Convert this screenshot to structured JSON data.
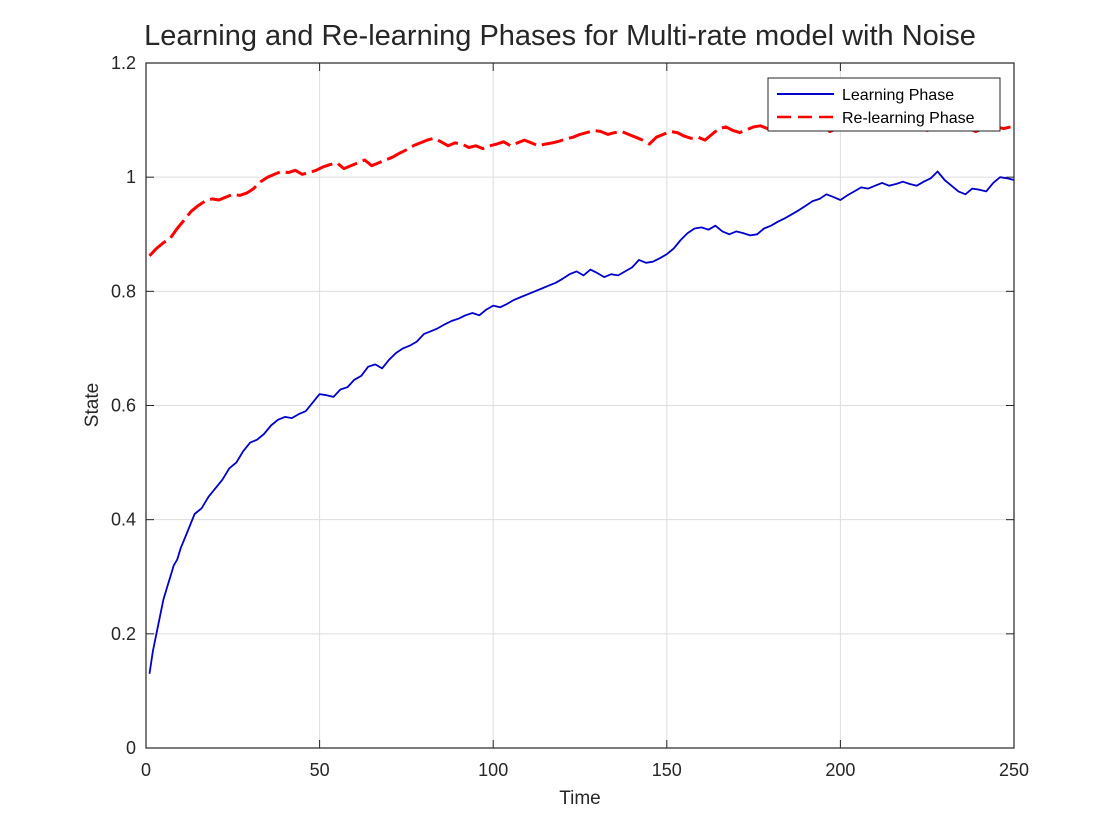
{
  "chart_data": {
    "type": "line",
    "title": "Learning and Re-learning Phases for Multi-rate model with Noise",
    "xlabel": "Time",
    "ylabel": "State",
    "xlim": [
      0,
      250
    ],
    "ylim": [
      0,
      1.2
    ],
    "xticks": [
      0,
      50,
      100,
      150,
      200,
      250
    ],
    "yticks": [
      0,
      0.2,
      0.4,
      0.6,
      0.8,
      1,
      1.2
    ],
    "xtick_labels": [
      "0",
      "50",
      "100",
      "150",
      "200",
      "250"
    ],
    "ytick_labels": [
      "0",
      "0.2",
      "0.4",
      "0.6",
      "0.8",
      "1",
      "1.2"
    ],
    "grid": true,
    "legend_position": "top-right",
    "series": [
      {
        "name": "Learning Phase",
        "color": "#0000cc",
        "style": "solid",
        "x": [
          1,
          2,
          3,
          4,
          5,
          6,
          7,
          8,
          9,
          10,
          12,
          14,
          16,
          18,
          20,
          22,
          24,
          26,
          28,
          30,
          32,
          34,
          36,
          38,
          40,
          42,
          44,
          46,
          48,
          50,
          52,
          54,
          56,
          58,
          60,
          62,
          64,
          66,
          68,
          70,
          72,
          74,
          76,
          78,
          80,
          82,
          84,
          86,
          88,
          90,
          92,
          94,
          96,
          98,
          100,
          102,
          104,
          106,
          108,
          110,
          112,
          114,
          116,
          118,
          120,
          122,
          124,
          126,
          128,
          130,
          132,
          134,
          136,
          138,
          140,
          142,
          144,
          146,
          148,
          150,
          152,
          154,
          156,
          158,
          160,
          162,
          164,
          166,
          168,
          170,
          172,
          174,
          176,
          178,
          180,
          182,
          184,
          186,
          188,
          190,
          192,
          194,
          196,
          198,
          200,
          202,
          204,
          206,
          208,
          210,
          212,
          214,
          216,
          218,
          220,
          222,
          224,
          226,
          228,
          230,
          232,
          234,
          236,
          238,
          240,
          242,
          244,
          246,
          248,
          250
        ],
        "y": [
          0.13,
          0.17,
          0.2,
          0.23,
          0.26,
          0.28,
          0.3,
          0.32,
          0.33,
          0.35,
          0.38,
          0.41,
          0.42,
          0.44,
          0.455,
          0.47,
          0.49,
          0.5,
          0.52,
          0.535,
          0.54,
          0.55,
          0.565,
          0.575,
          0.58,
          0.578,
          0.585,
          0.59,
          0.605,
          0.62,
          0.618,
          0.615,
          0.628,
          0.632,
          0.645,
          0.652,
          0.668,
          0.672,
          0.665,
          0.68,
          0.692,
          0.7,
          0.705,
          0.712,
          0.725,
          0.73,
          0.735,
          0.742,
          0.748,
          0.752,
          0.758,
          0.762,
          0.758,
          0.768,
          0.775,
          0.772,
          0.778,
          0.785,
          0.79,
          0.795,
          0.8,
          0.805,
          0.81,
          0.815,
          0.822,
          0.83,
          0.835,
          0.828,
          0.838,
          0.832,
          0.825,
          0.83,
          0.828,
          0.835,
          0.842,
          0.855,
          0.85,
          0.852,
          0.858,
          0.865,
          0.875,
          0.89,
          0.902,
          0.91,
          0.912,
          0.908,
          0.915,
          0.905,
          0.9,
          0.905,
          0.902,
          0.898,
          0.9,
          0.91,
          0.915,
          0.922,
          0.928,
          0.935,
          0.942,
          0.95,
          0.958,
          0.962,
          0.97,
          0.965,
          0.96,
          0.968,
          0.975,
          0.982,
          0.98,
          0.985,
          0.99,
          0.985,
          0.988,
          0.992,
          0.988,
          0.985,
          0.992,
          0.998,
          1.01,
          0.995,
          0.985,
          0.975,
          0.97,
          0.98,
          0.978,
          0.975,
          0.99,
          1.0,
          0.998,
          0.995
        ]
      },
      {
        "name": "Re-learning Phase",
        "color": "#ff0000",
        "style": "dashed",
        "x": [
          1,
          3,
          5,
          7,
          9,
          11,
          13,
          15,
          17,
          19,
          21,
          23,
          25,
          27,
          29,
          31,
          33,
          35,
          37,
          39,
          41,
          43,
          45,
          47,
          49,
          51,
          53,
          55,
          57,
          59,
          61,
          63,
          65,
          67,
          69,
          71,
          73,
          75,
          77,
          79,
          81,
          83,
          85,
          87,
          89,
          91,
          93,
          95,
          97,
          99,
          101,
          103,
          105,
          107,
          109,
          111,
          113,
          115,
          117,
          119,
          121,
          123,
          125,
          127,
          129,
          131,
          133,
          135,
          137,
          139,
          141,
          143,
          145,
          147,
          149,
          151,
          153,
          155,
          157,
          159,
          161,
          163,
          165,
          167,
          169,
          171,
          173,
          175,
          177,
          179,
          181,
          183,
          185,
          187,
          189,
          191,
          193,
          195,
          197,
          199,
          201,
          203,
          205,
          207,
          209,
          211,
          213,
          215,
          217,
          219,
          221,
          223,
          225,
          227,
          229,
          231,
          233,
          235,
          237,
          239,
          241,
          243,
          245,
          247,
          249
        ],
        "y": [
          0.862,
          0.875,
          0.885,
          0.893,
          0.91,
          0.925,
          0.94,
          0.95,
          0.958,
          0.962,
          0.96,
          0.965,
          0.97,
          0.968,
          0.972,
          0.98,
          0.992,
          1.0,
          1.005,
          1.01,
          1.008,
          1.012,
          1.005,
          1.008,
          1.012,
          1.018,
          1.022,
          1.025,
          1.015,
          1.02,
          1.025,
          1.03,
          1.02,
          1.025,
          1.03,
          1.035,
          1.042,
          1.048,
          1.055,
          1.06,
          1.065,
          1.068,
          1.062,
          1.055,
          1.06,
          1.058,
          1.052,
          1.055,
          1.05,
          1.055,
          1.058,
          1.062,
          1.055,
          1.06,
          1.065,
          1.06,
          1.055,
          1.058,
          1.06,
          1.063,
          1.067,
          1.07,
          1.075,
          1.078,
          1.082,
          1.08,
          1.075,
          1.078,
          1.08,
          1.075,
          1.07,
          1.065,
          1.058,
          1.07,
          1.075,
          1.08,
          1.078,
          1.072,
          1.068,
          1.07,
          1.065,
          1.075,
          1.085,
          1.088,
          1.082,
          1.078,
          1.083,
          1.088,
          1.09,
          1.085,
          1.088,
          1.09,
          1.085,
          1.088,
          1.09,
          1.092,
          1.088,
          1.085,
          1.08,
          1.085,
          1.09,
          1.088,
          1.085,
          1.09,
          1.088,
          1.085,
          1.09,
          1.088,
          1.085,
          1.09,
          1.088,
          1.085,
          1.082,
          1.085,
          1.09,
          1.088,
          1.085,
          1.082,
          1.085,
          1.08,
          1.085,
          1.09,
          1.088,
          1.085,
          1.088
        ]
      }
    ]
  }
}
